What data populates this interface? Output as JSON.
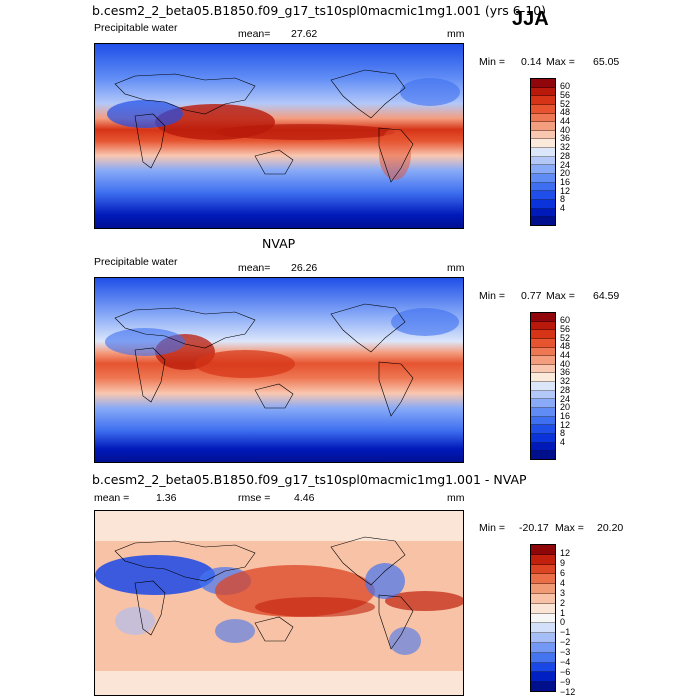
{
  "season": "JJA",
  "colors": {
    "precip_scale": [
      "#000f8c",
      "#0019b9",
      "#0b33da",
      "#1f4fe8",
      "#3e6ff0",
      "#5f8cf5",
      "#88aaf7",
      "#b3c8f9",
      "#dce6fb",
      "#fbe9dc",
      "#f9c7b0",
      "#f49e80",
      "#ee7854",
      "#e65430",
      "#d63417",
      "#b8190a",
      "#90060a"
    ],
    "diff_scale": [
      "#000f8c",
      "#0020c4",
      "#1a48e6",
      "#4474f0",
      "#7398f5",
      "#a6bdf8",
      "#d4e0fa",
      "#f7f7f7",
      "#fbe5d6",
      "#f7c2a6",
      "#f19a76",
      "#ea6e48",
      "#dc4423",
      "#c0200c",
      "#8f0608"
    ]
  },
  "chart_data": [
    {
      "type": "heatmap",
      "title": "b.cesm2_2_beta05.B1850.f09_g17_ts10spl0macmic1mg1.001 (yrs 6-10)",
      "left_label": "Precipitable water",
      "stat_label": "mean=",
      "stat_value": "27.62",
      "units": "mm",
      "min_label": "Min =",
      "min": "0.14",
      "max_label": "Max =",
      "max": "65.05",
      "colorbar_ticks": [
        "60",
        "56",
        "52",
        "48",
        "44",
        "40",
        "36",
        "32",
        "28",
        "24",
        "20",
        "16",
        "12",
        "8",
        "4"
      ]
    },
    {
      "type": "heatmap",
      "title": "NVAP",
      "left_label": "Precipitable water",
      "stat_label": "mean=",
      "stat_value": "26.26",
      "units": "mm",
      "min_label": "Min =",
      "min": "0.77",
      "max_label": "Max =",
      "max": "64.59",
      "colorbar_ticks": [
        "60",
        "56",
        "52",
        "48",
        "44",
        "40",
        "36",
        "32",
        "28",
        "24",
        "20",
        "16",
        "12",
        "8",
        "4"
      ]
    },
    {
      "type": "heatmap",
      "title": "b.cesm2_2_beta05.B1850.f09_g17_ts10spl0macmic1mg1.001 - NVAP",
      "mean_label": "mean =",
      "mean": "1.36",
      "rmse_label": "rmse =",
      "rmse": "4.46",
      "units": "mm",
      "min_label": "Min =",
      "min": "-20.17",
      "max_label": "Max =",
      "max": "20.20",
      "colorbar_ticks": [
        "12",
        "9",
        "6",
        "4",
        "3",
        "2",
        "1",
        "0",
        "−1",
        "−2",
        "−3",
        "−4",
        "−6",
        "−9",
        "−12"
      ]
    }
  ]
}
